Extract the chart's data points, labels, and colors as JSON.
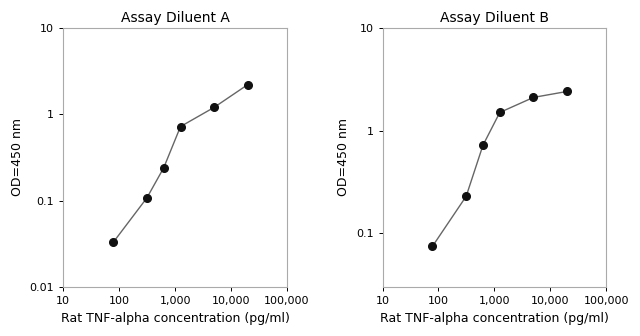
{
  "panel_A": {
    "title": "Assay Diluent A",
    "x": [
      78,
      313,
      625,
      1250,
      5000,
      20000
    ],
    "y": [
      0.033,
      0.108,
      0.24,
      0.72,
      1.2,
      2.2
    ],
    "xlim": [
      10,
      100000
    ],
    "ylim": [
      0.01,
      10
    ],
    "xlabel": "Rat TNF-alpha concentration (pg/ml)",
    "ylabel": "OD=450 nm",
    "xticks": [
      10,
      100,
      1000,
      10000,
      100000
    ],
    "xtick_labels": [
      "10",
      "100",
      "1,000",
      "10,000",
      "100,000"
    ],
    "yticks": [
      0.01,
      0.1,
      1,
      10
    ],
    "ytick_labels": [
      "0.01",
      "0.1",
      "1",
      "10"
    ]
  },
  "panel_B": {
    "title": "Assay Diluent B",
    "x": [
      78,
      313,
      625,
      1250,
      5000,
      20000
    ],
    "y": [
      0.075,
      0.23,
      0.72,
      1.5,
      2.1,
      2.4
    ],
    "xlim": [
      10,
      100000
    ],
    "ylim": [
      0.03,
      10
    ],
    "xlabel": "Rat TNF-alpha concentration (pg/ml)",
    "ylabel": "OD=450 nm",
    "xticks": [
      10,
      100,
      1000,
      10000,
      100000
    ],
    "xtick_labels": [
      "10",
      "100",
      "1,000",
      "10,000",
      "100,000"
    ],
    "yticks": [
      0.1,
      1,
      10
    ],
    "ytick_labels": [
      "0.1",
      "1",
      "10"
    ]
  },
  "line_color": "#666666",
  "marker_color": "#111111",
  "marker_size": 5.5,
  "line_width": 1.0,
  "title_fontsize": 10,
  "label_fontsize": 9,
  "tick_fontsize": 8,
  "axis_color": "#aaaaaa",
  "bg_color": "#ffffff",
  "ylabel_color": "#000000",
  "xlabel_color": "#000000"
}
